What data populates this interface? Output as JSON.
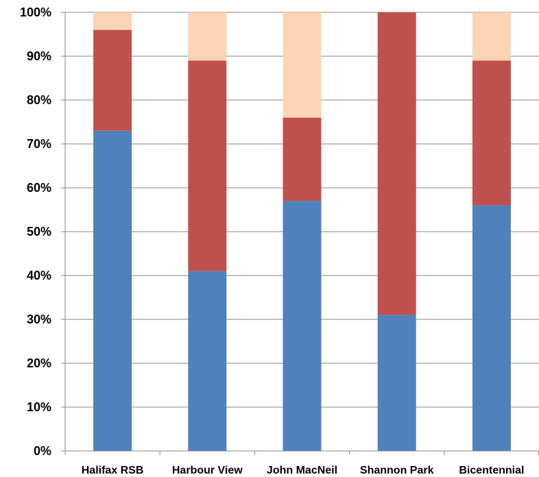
{
  "chart_data": {
    "type": "bar",
    "stacked": true,
    "percent": true,
    "title": "",
    "xlabel": "",
    "ylabel": "",
    "ylim": [
      0,
      100
    ],
    "grid": true,
    "legend": "none",
    "categories": [
      "Halifax RSB",
      "Harbour View",
      "John MacNeil",
      "Shannon Park",
      "Bicentennial"
    ],
    "y_ticks": [
      "0%",
      "10%",
      "20%",
      "30%",
      "40%",
      "50%",
      "60%",
      "70%",
      "80%",
      "90%",
      "100%"
    ],
    "series": [
      {
        "color": "#4F81BD",
        "values": [
          73,
          41,
          57,
          31,
          56
        ]
      },
      {
        "color": "#C0504D",
        "values": [
          23,
          48,
          19,
          69,
          33
        ]
      },
      {
        "color": "#FBD4B4",
        "values": [
          4,
          11,
          24,
          0,
          11
        ]
      }
    ]
  }
}
